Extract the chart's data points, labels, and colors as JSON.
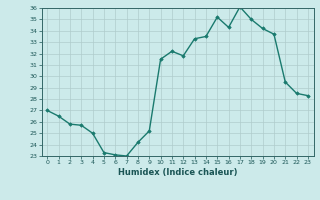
{
  "x": [
    0,
    1,
    2,
    3,
    4,
    5,
    6,
    7,
    8,
    9,
    10,
    11,
    12,
    13,
    14,
    15,
    16,
    17,
    18,
    19,
    20,
    21,
    22,
    23
  ],
  "y": [
    27,
    26.5,
    25.8,
    25.7,
    25.0,
    23.3,
    23.1,
    23.0,
    24.2,
    25.2,
    31.5,
    32.2,
    31.8,
    33.3,
    33.5,
    35.2,
    34.3,
    36.1,
    35.0,
    34.2,
    33.7,
    29.5,
    28.5,
    28.3
  ],
  "line_color": "#1a7a6e",
  "marker": "D",
  "marker_size": 1.8,
  "xlabel": "Humidex (Indice chaleur)",
  "ylim": [
    23,
    36
  ],
  "xlim": [
    -0.5,
    23.5
  ],
  "yticks": [
    23,
    24,
    25,
    26,
    27,
    28,
    29,
    30,
    31,
    32,
    33,
    34,
    35,
    36
  ],
  "xticks": [
    0,
    1,
    2,
    3,
    4,
    5,
    6,
    7,
    8,
    9,
    10,
    11,
    12,
    13,
    14,
    15,
    16,
    17,
    18,
    19,
    20,
    21,
    22,
    23
  ],
  "bg_color": "#cceaea",
  "grid_color": "#b0cccc",
  "linewidth": 1.0
}
